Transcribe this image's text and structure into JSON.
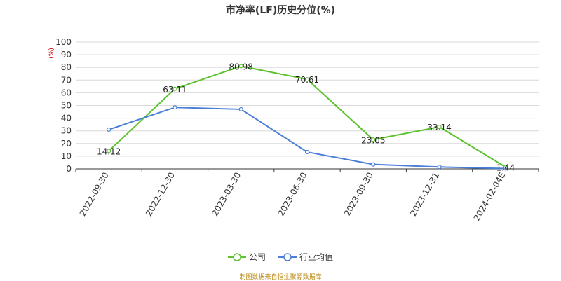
{
  "chart_data": {
    "type": "line",
    "title": "市净率(LF)历史分位(%)",
    "ylabel": "(%)",
    "xlabel": "",
    "ylim": [
      0,
      100
    ],
    "yticks": [
      0,
      10,
      20,
      30,
      40,
      50,
      60,
      70,
      80,
      90,
      100
    ],
    "categories": [
      "2022-09-30",
      "2022-12-30",
      "2023-03-30",
      "2023-06-30",
      "2023-09-30",
      "2023-12-31",
      "2024-02-04E"
    ],
    "series": [
      {
        "name": "公司",
        "color": "#5cc22e",
        "values": [
          14.12,
          63.11,
          80.98,
          70.61,
          23.05,
          33.14,
          1.44
        ],
        "labels": [
          "14.12",
          "63.11",
          "80.98",
          "70.61",
          "23.05",
          "33.14",
          "1.44"
        ]
      },
      {
        "name": "行业均值",
        "color": "#4a7fd6",
        "values": [
          31,
          48.5,
          47,
          13.3,
          3.5,
          1.5,
          0.3
        ]
      }
    ],
    "grid": true,
    "legend_position": "bottom"
  },
  "footer": "制图数据来自恒生聚源数据库"
}
